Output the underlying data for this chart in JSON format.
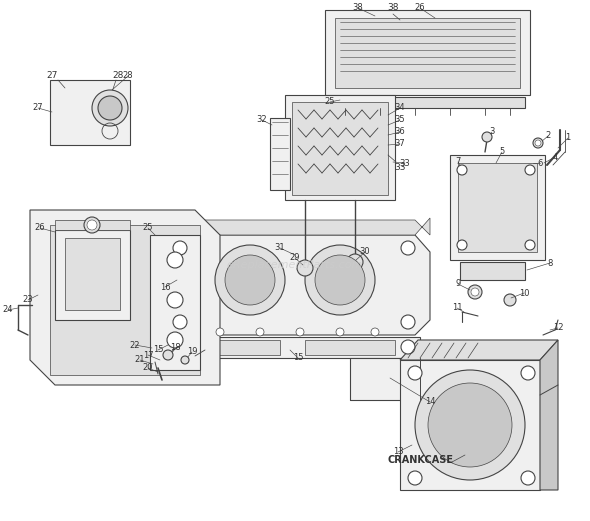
{
  "bg_color": "#ffffff",
  "line_color": "#444444",
  "label_color": "#333333",
  "fill_light": "#f0f0f0",
  "fill_mid": "#e0e0e0",
  "fill_dark": "#c8c8c8",
  "watermark": "eReplacementParts.com",
  "watermark_color": "#cccccc",
  "crankcase_label": "CRANKCASE",
  "figsize": [
    5.9,
    5.21
  ],
  "dpi": 100
}
